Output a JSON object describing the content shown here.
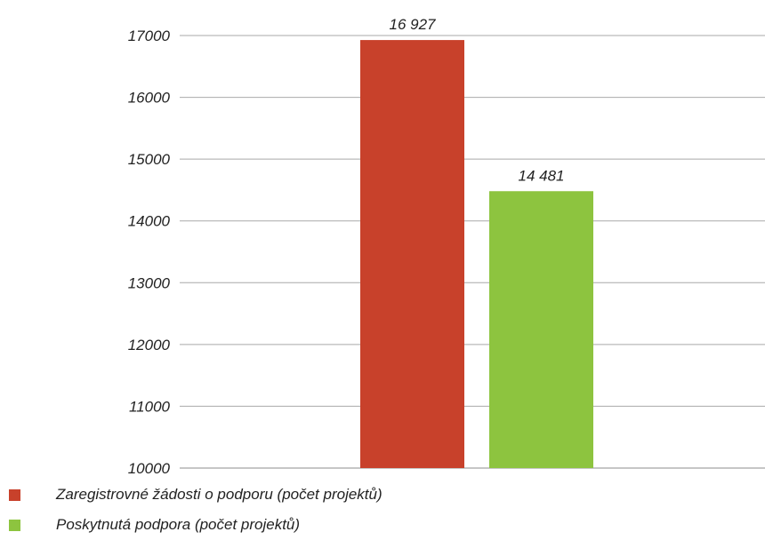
{
  "chart_data": {
    "type": "bar",
    "title": "",
    "xlabel": "",
    "ylabel": "",
    "ylim": [
      10000,
      17000
    ],
    "yticks": [
      10000,
      11000,
      12000,
      13000,
      14000,
      15000,
      16000,
      17000
    ],
    "grid": true,
    "legend_position": "bottom-left",
    "series": [
      {
        "name": "Zaregistrovné žádosti o podporu (počet projektů)",
        "value": 16927,
        "value_label": "16 927",
        "color": "#c8412b"
      },
      {
        "name": "Poskytnutá podpora (počet projektů)",
        "value": 14481,
        "value_label": "14 481",
        "color": "#8dc43f"
      }
    ]
  }
}
